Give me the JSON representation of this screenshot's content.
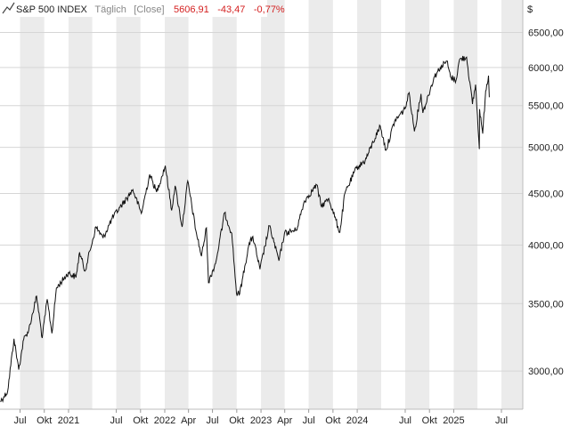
{
  "header": {
    "name": "S&P 500 INDEX",
    "interval": "Täglich",
    "mode": "[Close]",
    "last": "5606,91",
    "change": "-43,47",
    "change_pct": "-0,77%"
  },
  "colors": {
    "line": "#111111",
    "band": "#ebebeb",
    "plot_bg": "#f5f5f5",
    "grid": "#d6d6d6",
    "negative": "#d42020"
  },
  "icons": {
    "chart_type": "line-chart-icon"
  },
  "chart_data": {
    "type": "line",
    "title": "S&P 500 INDEX",
    "ylabel": "$",
    "yscale": "log",
    "ylim": [
      2750,
      7000
    ],
    "xlim": [
      "2020-04-16",
      "2025-09-20"
    ],
    "grid": true,
    "y_ticks": [
      {
        "value": 3000,
        "label": "3000,00"
      },
      {
        "value": 3500,
        "label": "3500,00"
      },
      {
        "value": 4000,
        "label": "4000,00"
      },
      {
        "value": 4500,
        "label": "4500,00"
      },
      {
        "value": 5000,
        "label": "5000,00"
      },
      {
        "value": 5500,
        "label": "5500,00"
      },
      {
        "value": 6000,
        "label": "6000,00"
      },
      {
        "value": 6500,
        "label": "6500,00"
      }
    ],
    "x_ticks": [
      {
        "date": "2020-07-01",
        "label": "Jul"
      },
      {
        "date": "2020-10-01",
        "label": "Okt"
      },
      {
        "date": "2021-01-01",
        "label": "2021"
      },
      {
        "date": "2021-07-01",
        "label": "Jul"
      },
      {
        "date": "2021-10-01",
        "label": "Okt"
      },
      {
        "date": "2022-01-01",
        "label": "2022"
      },
      {
        "date": "2022-04-01",
        "label": "Apr"
      },
      {
        "date": "2022-07-01",
        "label": "Jul"
      },
      {
        "date": "2022-10-01",
        "label": "Okt"
      },
      {
        "date": "2023-01-01",
        "label": "2023"
      },
      {
        "date": "2023-04-01",
        "label": "Apr"
      },
      {
        "date": "2023-07-01",
        "label": "Jul"
      },
      {
        "date": "2023-10-01",
        "label": "Okt"
      },
      {
        "date": "2024-01-01",
        "label": "2024"
      },
      {
        "date": "2024-07-01",
        "label": "Jul"
      },
      {
        "date": "2024-10-01",
        "label": "Okt"
      },
      {
        "date": "2025-01-01",
        "label": "2025"
      },
      {
        "date": "2025-07-01",
        "label": "Jul"
      }
    ],
    "series": [
      {
        "name": "S&P 500 INDEX",
        "points": [
          [
            "2020-04-17",
            2800
          ],
          [
            "2020-05-01",
            2830
          ],
          [
            "2020-05-15",
            2865
          ],
          [
            "2020-06-08",
            3230
          ],
          [
            "2020-06-26",
            3010
          ],
          [
            "2020-07-15",
            3225
          ],
          [
            "2020-08-03",
            3295
          ],
          [
            "2020-09-02",
            3560
          ],
          [
            "2020-09-23",
            3235
          ],
          [
            "2020-10-12",
            3535
          ],
          [
            "2020-10-30",
            3270
          ],
          [
            "2020-11-16",
            3625
          ],
          [
            "2020-12-31",
            3755
          ],
          [
            "2021-01-29",
            3715
          ],
          [
            "2021-02-12",
            3935
          ],
          [
            "2021-03-04",
            3770
          ],
          [
            "2021-04-15",
            4170
          ],
          [
            "2021-05-12",
            4065
          ],
          [
            "2021-06-15",
            4250
          ],
          [
            "2021-07-15",
            4360
          ],
          [
            "2021-08-15",
            4470
          ],
          [
            "2021-09-02",
            4540
          ],
          [
            "2021-10-04",
            4300
          ],
          [
            "2021-11-05",
            4700
          ],
          [
            "2021-12-01",
            4515
          ],
          [
            "2022-01-03",
            4795
          ],
          [
            "2022-01-27",
            4330
          ],
          [
            "2022-02-09",
            4580
          ],
          [
            "2022-03-08",
            4170
          ],
          [
            "2022-03-29",
            4630
          ],
          [
            "2022-04-29",
            4135
          ],
          [
            "2022-05-20",
            3900
          ],
          [
            "2022-06-08",
            4160
          ],
          [
            "2022-06-16",
            3670
          ],
          [
            "2022-07-15",
            3860
          ],
          [
            "2022-08-16",
            4305
          ],
          [
            "2022-09-12",
            4110
          ],
          [
            "2022-09-30",
            3585
          ],
          [
            "2022-10-12",
            3577
          ],
          [
            "2022-11-15",
            3990
          ],
          [
            "2022-12-01",
            4080
          ],
          [
            "2022-12-28",
            3785
          ],
          [
            "2023-02-02",
            4180
          ],
          [
            "2023-03-10",
            3860
          ],
          [
            "2023-03-31",
            4110
          ],
          [
            "2023-05-15",
            4140
          ],
          [
            "2023-06-15",
            4425
          ],
          [
            "2023-07-31",
            4590
          ],
          [
            "2023-08-18",
            4370
          ],
          [
            "2023-09-15",
            4450
          ],
          [
            "2023-10-27",
            4117
          ],
          [
            "2023-11-15",
            4500
          ],
          [
            "2023-12-29",
            4770
          ],
          [
            "2024-01-31",
            4850
          ],
          [
            "2024-03-28",
            5250
          ],
          [
            "2024-04-19",
            4967
          ],
          [
            "2024-05-22",
            5310
          ],
          [
            "2024-06-30",
            5460
          ],
          [
            "2024-07-16",
            5665
          ],
          [
            "2024-08-05",
            5186
          ],
          [
            "2024-08-30",
            5650
          ],
          [
            "2024-09-06",
            5410
          ],
          [
            "2024-10-18",
            5865
          ],
          [
            "2024-11-11",
            6000
          ],
          [
            "2024-12-06",
            6090
          ],
          [
            "2024-12-20",
            5870
          ],
          [
            "2025-01-10",
            5830
          ],
          [
            "2025-01-23",
            6110
          ],
          [
            "2025-02-19",
            6144
          ],
          [
            "2025-03-13",
            5520
          ],
          [
            "2025-03-25",
            5770
          ],
          [
            "2025-04-08",
            4980
          ],
          [
            "2025-04-09",
            5456
          ],
          [
            "2025-04-21",
            5160
          ],
          [
            "2025-05-02",
            5686
          ],
          [
            "2025-05-13",
            5890
          ],
          [
            "2025-05-16",
            5606.91
          ]
        ]
      }
    ]
  }
}
